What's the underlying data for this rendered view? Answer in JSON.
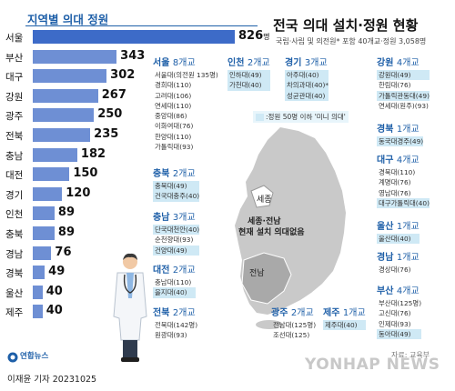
{
  "chart_title": "지역별 의대 정원",
  "main_title": "전국 의대 설치·정원 현황",
  "subtitle": "국립·사립 및 의전원* 포함 40개교·정원 3,058명",
  "unit": "명",
  "legend_text": ":정원 50명 이하 '미니 의대'",
  "map_text": {
    "sejong": "세종",
    "notice_line1": "세종·전남",
    "notice_line2": "현재 설치 의대없음",
    "jeonnam": "전남"
  },
  "colors": {
    "bar": "#6e8fd4",
    "top_bar": "#3d6bc8",
    "map": "#c9c9c9",
    "mini": "#cfe9f5",
    "accent": "#1e5fa8"
  },
  "chart_data": {
    "type": "bar",
    "orientation": "horizontal",
    "title": "지역별 의대 정원",
    "categories": [
      "서울",
      "부산",
      "대구",
      "강원",
      "광주",
      "전북",
      "충남",
      "대전",
      "경기",
      "인천",
      "충북",
      "경남",
      "경북",
      "울산",
      "제주"
    ],
    "values": [
      826,
      343,
      302,
      267,
      250,
      235,
      182,
      150,
      120,
      89,
      89,
      76,
      49,
      40,
      40
    ],
    "value_labels": [
      "826",
      "343",
      "302",
      "267",
      "250",
      "235",
      "182",
      "150",
      "120",
      "89",
      "89",
      "76",
      "49",
      "40",
      "40"
    ],
    "xlim": [
      0,
      826
    ]
  },
  "regions": [
    {
      "name": "서울",
      "count": "8개교",
      "items": [
        {
          "t": "서울대(의전원 135명)",
          "m": false
        },
        {
          "t": "경희대(110)",
          "m": false
        },
        {
          "t": "고려대(106)",
          "m": false
        },
        {
          "t": "연세대(110)",
          "m": false
        },
        {
          "t": "중앙대(86)",
          "m": false
        },
        {
          "t": "이화여대(76)",
          "m": false
        },
        {
          "t": "한양대(110)",
          "m": false
        },
        {
          "t": "가톨릭대(93)",
          "m": false
        }
      ]
    },
    {
      "name": "인천",
      "count": "2개교",
      "items": [
        {
          "t": "인하대(49)",
          "m": true
        },
        {
          "t": "가천대(40)",
          "m": true
        }
      ]
    },
    {
      "name": "경기",
      "count": "3개교",
      "items": [
        {
          "t": "아주대(40)",
          "m": true
        },
        {
          "t": "차의과대(40)*",
          "m": true
        },
        {
          "t": "성균관대(40)",
          "m": true
        }
      ]
    },
    {
      "name": "강원",
      "count": "4개교",
      "items": [
        {
          "t": "강원대(49)",
          "m": true
        },
        {
          "t": "한림대(76)",
          "m": false
        },
        {
          "t": "가톨릭관동대(49)",
          "m": true
        },
        {
          "t": "연세대(원주)(93)",
          "m": false
        }
      ]
    },
    {
      "name": "경북",
      "count": "1개교",
      "items": [
        {
          "t": "동국대경주(49)",
          "m": true
        }
      ]
    },
    {
      "name": "대구",
      "count": "4개교",
      "items": [
        {
          "t": "경북대(110)",
          "m": false
        },
        {
          "t": "계명대(76)",
          "m": false
        },
        {
          "t": "영남대(76)",
          "m": false
        },
        {
          "t": "대구가톨릭대(40)",
          "m": true
        }
      ]
    },
    {
      "name": "울산",
      "count": "1개교",
      "items": [
        {
          "t": "울산대(40)",
          "m": true
        }
      ]
    },
    {
      "name": "경남",
      "count": "1개교",
      "items": [
        {
          "t": "경상대(76)",
          "m": false
        }
      ]
    },
    {
      "name": "부산",
      "count": "4개교",
      "items": [
        {
          "t": "부산대(125명)",
          "m": false
        },
        {
          "t": "고신대(76)",
          "m": false
        },
        {
          "t": "인제대(93)",
          "m": false
        },
        {
          "t": "동아대(49)",
          "m": true
        }
      ]
    },
    {
      "name": "충북",
      "count": "2개교",
      "items": [
        {
          "t": "충북대(49)",
          "m": true
        },
        {
          "t": "건국대충주(40)",
          "m": true
        }
      ]
    },
    {
      "name": "충남",
      "count": "3개교",
      "items": [
        {
          "t": "단국대천안(40)",
          "m": true
        },
        {
          "t": "순천향대(93)",
          "m": false
        },
        {
          "t": "건양대(49)",
          "m": true
        }
      ]
    },
    {
      "name": "대전",
      "count": "2개교",
      "items": [
        {
          "t": "충남대(110)",
          "m": false
        },
        {
          "t": "을지대(40)",
          "m": true
        }
      ]
    },
    {
      "name": "전북",
      "count": "2개교",
      "items": [
        {
          "t": "전북대(142명)",
          "m": false
        },
        {
          "t": "원광대(93)",
          "m": false
        }
      ]
    },
    {
      "name": "광주",
      "count": "2개교",
      "items": [
        {
          "t": "전남대(125명)",
          "m": false
        },
        {
          "t": "조선대(125)",
          "m": false
        }
      ]
    },
    {
      "name": "제주",
      "count": "1개교",
      "items": [
        {
          "t": "제주대(40)",
          "m": true
        }
      ]
    }
  ],
  "footer": {
    "credit": "이재윤 기자  20231025",
    "agency": "연합뉴스",
    "source": "자료: 교육부",
    "watermark": "YONHAP NEWS"
  }
}
